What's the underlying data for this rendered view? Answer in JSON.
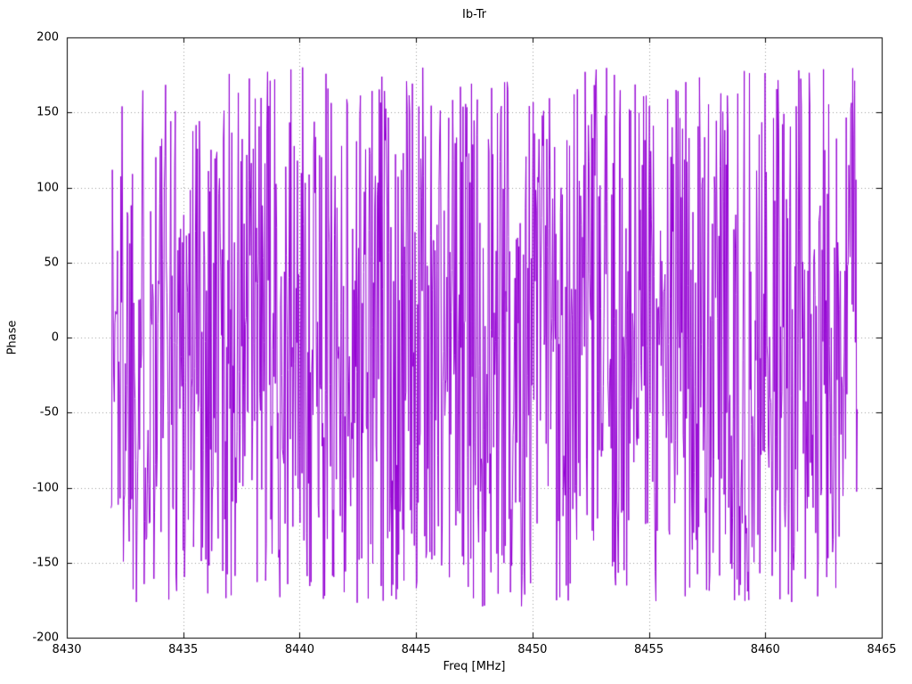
{
  "chart_data": {
    "type": "line",
    "title": "Ib-Tr",
    "xlabel": "Freq [MHz]",
    "ylabel": "Phase",
    "xlim": [
      8430,
      8465
    ],
    "ylim": [
      -200,
      200
    ],
    "xticks": [
      8430,
      8435,
      8440,
      8445,
      8450,
      8455,
      8460,
      8465
    ],
    "yticks": [
      -200,
      -150,
      -100,
      -50,
      0,
      50,
      100,
      150,
      200
    ],
    "grid": true,
    "legend": "none",
    "line_color": "#9400d3",
    "grid_color": "#9a9a9a",
    "border_color": "#000000",
    "background": "#ffffff",
    "series": [
      {
        "name": "Ib-Tr",
        "kind": "wrapped-phase-noise",
        "x_start": 8431.9,
        "x_end": 8463.95,
        "n_points": 1150,
        "y_min": -180,
        "y_max": 180,
        "distribution": "uniform",
        "seed": 1337
      }
    ],
    "note": "Dense wrapped-phase trace spanning ~8432-8464 MHz; phase values appear uniformly scattered between -180 and +180 degrees, drawn as a connected line"
  }
}
